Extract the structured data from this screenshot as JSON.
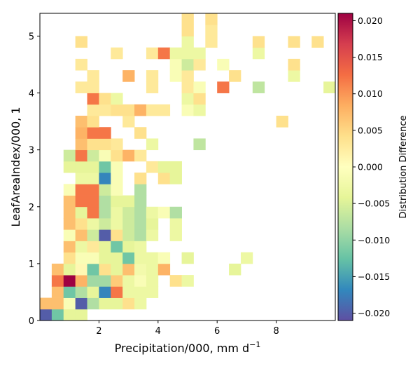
{
  "chart_data": {
    "type": "heatmap",
    "title": "",
    "xlabel": "Precipitation/000,  mm d",
    "xlabel_superscript": "−1",
    "ylabel": "LeafAreaIndex/000,  1",
    "colorbar_label": "Distribution Difference",
    "x_range": [
      0,
      10
    ],
    "y_range": [
      0,
      5.4
    ],
    "bin_width_x": 0.4,
    "bin_height_y": 0.2,
    "x_ticks": [
      2,
      4,
      6,
      8
    ],
    "x_tick_labels": [
      "2",
      "4",
      "6",
      "8"
    ],
    "y_ticks": [
      0,
      1,
      2,
      3,
      4,
      5
    ],
    "y_tick_labels": [
      "0",
      "1",
      "2",
      "3",
      "4",
      "5"
    ],
    "color_range": [
      -0.021,
      0.021
    ],
    "colorbar_ticks": [
      0.02,
      0.015,
      0.01,
      0.005,
      0.0,
      -0.005,
      -0.01,
      -0.015,
      -0.02
    ],
    "colorbar_tick_labels": [
      "0.020",
      "0.015",
      "0.010",
      "0.005",
      "0.000",
      "−0.005",
      "−0.010",
      "−0.015",
      "−0.020"
    ],
    "colormap": "Spectral_r",
    "grid": false,
    "cells": [
      [
        0.0,
        0.0,
        -0.02
      ],
      [
        0.4,
        0.0,
        -0.012
      ],
      [
        0.8,
        0.0,
        -0.004
      ],
      [
        1.2,
        0.0,
        -0.004
      ],
      [
        0.0,
        0.2,
        0.007
      ],
      [
        0.4,
        0.2,
        0.007
      ],
      [
        0.8,
        0.2,
        -0.001
      ],
      [
        1.2,
        0.2,
        -0.02
      ],
      [
        1.6,
        0.2,
        -0.008
      ],
      [
        2.0,
        0.2,
        -0.004
      ],
      [
        2.4,
        0.2,
        -0.004
      ],
      [
        2.8,
        0.2,
        0.004
      ],
      [
        3.2,
        0.2,
        -0.003
      ],
      [
        0.4,
        0.4,
        0.007
      ],
      [
        0.8,
        0.4,
        -0.012
      ],
      [
        1.2,
        0.4,
        -0.008
      ],
      [
        1.6,
        0.4,
        -0.004
      ],
      [
        2.0,
        0.4,
        -0.017
      ],
      [
        2.4,
        0.4,
        0.012
      ],
      [
        2.8,
        0.4,
        -0.003
      ],
      [
        3.2,
        0.4,
        -0.003
      ],
      [
        3.6,
        0.4,
        -0.003
      ],
      [
        0.4,
        0.6,
        0.012
      ],
      [
        0.8,
        0.6,
        0.021
      ],
      [
        1.2,
        0.6,
        0.008
      ],
      [
        1.6,
        0.6,
        -0.009
      ],
      [
        2.0,
        0.6,
        -0.009
      ],
      [
        2.4,
        0.6,
        0.006
      ],
      [
        2.8,
        0.6,
        -0.003
      ],
      [
        3.2,
        0.6,
        -0.001
      ],
      [
        3.6,
        0.6,
        -0.003
      ],
      [
        4.4,
        0.6,
        0.004
      ],
      [
        4.8,
        0.6,
        -0.003
      ],
      [
        0.4,
        0.8,
        0.007
      ],
      [
        0.8,
        0.8,
        -0.004
      ],
      [
        1.2,
        0.8,
        0.001
      ],
      [
        1.6,
        0.8,
        -0.012
      ],
      [
        2.0,
        0.8,
        0.004
      ],
      [
        2.4,
        0.8,
        -0.004
      ],
      [
        2.8,
        0.8,
        0.007
      ],
      [
        3.2,
        0.8,
        -0.002
      ],
      [
        3.6,
        0.8,
        -0.003
      ],
      [
        4.0,
        0.8,
        0.008
      ],
      [
        6.4,
        0.8,
        -0.004
      ],
      [
        0.8,
        1.0,
        0.004
      ],
      [
        1.2,
        1.0,
        -0.001
      ],
      [
        1.6,
        1.0,
        -0.001
      ],
      [
        2.0,
        1.0,
        -0.004
      ],
      [
        2.4,
        1.0,
        -0.004
      ],
      [
        2.8,
        1.0,
        -0.012
      ],
      [
        3.2,
        1.0,
        -0.003
      ],
      [
        3.6,
        1.0,
        -0.003
      ],
      [
        4.0,
        1.0,
        -0.001
      ],
      [
        4.8,
        1.0,
        -0.004
      ],
      [
        6.8,
        1.0,
        -0.003
      ],
      [
        0.8,
        1.2,
        0.007
      ],
      [
        1.2,
        1.2,
        -0.003
      ],
      [
        1.6,
        1.2,
        0.003
      ],
      [
        2.0,
        1.2,
        -0.004
      ],
      [
        2.4,
        1.2,
        -0.012
      ],
      [
        2.8,
        1.2,
        -0.004
      ],
      [
        3.2,
        1.2,
        -0.003
      ],
      [
        0.8,
        1.4,
        -0.001
      ],
      [
        1.2,
        1.4,
        0.007
      ],
      [
        1.6,
        1.4,
        -0.006
      ],
      [
        2.0,
        1.4,
        -0.02
      ],
      [
        2.4,
        1.4,
        0.004
      ],
      [
        2.8,
        1.4,
        -0.006
      ],
      [
        3.2,
        1.4,
        -0.008
      ],
      [
        3.6,
        1.4,
        -0.003
      ],
      [
        4.4,
        1.4,
        -0.003
      ],
      [
        0.8,
        1.6,
        0.007
      ],
      [
        1.2,
        1.6,
        0.004
      ],
      [
        1.6,
        1.6,
        -0.003
      ],
      [
        2.0,
        1.6,
        -0.006
      ],
      [
        2.4,
        1.6,
        -0.003
      ],
      [
        2.8,
        1.6,
        -0.006
      ],
      [
        3.2,
        1.6,
        -0.008
      ],
      [
        3.6,
        1.6,
        -0.004
      ],
      [
        4.4,
        1.6,
        -0.003
      ],
      [
        0.8,
        1.8,
        0.007
      ],
      [
        1.2,
        1.8,
        -0.004
      ],
      [
        1.6,
        1.8,
        0.012
      ],
      [
        2.0,
        1.8,
        -0.008
      ],
      [
        2.4,
        1.8,
        -0.003
      ],
      [
        2.8,
        1.8,
        -0.006
      ],
      [
        3.2,
        1.8,
        -0.008
      ],
      [
        3.6,
        1.8,
        -0.003
      ],
      [
        4.0,
        1.8,
        -0.001
      ],
      [
        4.4,
        1.8,
        -0.008
      ],
      [
        0.8,
        2.0,
        0.007
      ],
      [
        1.2,
        2.0,
        0.012
      ],
      [
        1.6,
        2.0,
        0.012
      ],
      [
        2.0,
        2.0,
        -0.008
      ],
      [
        2.4,
        2.0,
        -0.004
      ],
      [
        2.8,
        2.0,
        -0.004
      ],
      [
        3.2,
        2.0,
        -0.008
      ],
      [
        0.8,
        2.2,
        -0.001
      ],
      [
        1.2,
        2.2,
        0.012
      ],
      [
        1.6,
        2.2,
        0.012
      ],
      [
        2.0,
        2.2,
        -0.006
      ],
      [
        2.4,
        2.2,
        -0.001
      ],
      [
        3.2,
        2.2,
        -0.008
      ],
      [
        1.2,
        2.4,
        -0.003
      ],
      [
        1.6,
        2.4,
        -0.003
      ],
      [
        2.0,
        2.4,
        -0.017
      ],
      [
        2.4,
        2.4,
        -0.001
      ],
      [
        3.2,
        2.4,
        0.004
      ],
      [
        4.0,
        2.4,
        0.004
      ],
      [
        4.4,
        2.4,
        -0.004
      ],
      [
        0.8,
        2.6,
        -0.004
      ],
      [
        1.2,
        2.6,
        -0.004
      ],
      [
        1.6,
        2.6,
        -0.004
      ],
      [
        2.0,
        2.6,
        -0.012
      ],
      [
        2.4,
        2.6,
        -0.001
      ],
      [
        3.6,
        2.6,
        0.003
      ],
      [
        4.0,
        2.6,
        -0.004
      ],
      [
        4.4,
        2.6,
        -0.004
      ],
      [
        0.8,
        2.8,
        -0.006
      ],
      [
        1.2,
        2.8,
        0.012
      ],
      [
        1.6,
        2.8,
        -0.006
      ],
      [
        2.0,
        2.8,
        -0.001
      ],
      [
        2.4,
        2.8,
        0.004
      ],
      [
        2.8,
        2.8,
        0.008
      ],
      [
        3.2,
        2.8,
        0.003
      ],
      [
        1.2,
        3.0,
        0.007
      ],
      [
        1.6,
        3.0,
        0.004
      ],
      [
        2.0,
        3.0,
        0.004
      ],
      [
        2.4,
        3.0,
        0.003
      ],
      [
        3.6,
        3.0,
        -0.003
      ],
      [
        5.2,
        3.0,
        -0.007
      ],
      [
        1.2,
        3.2,
        0.008
      ],
      [
        1.6,
        3.2,
        0.012
      ],
      [
        2.0,
        3.2,
        0.012
      ],
      [
        3.2,
        3.2,
        0.004
      ],
      [
        1.2,
        3.4,
        0.007
      ],
      [
        1.6,
        3.4,
        0.004
      ],
      [
        2.8,
        3.4,
        0.003
      ],
      [
        8.0,
        3.4,
        0.004
      ],
      [
        1.6,
        3.6,
        0.003
      ],
      [
        2.0,
        3.6,
        0.003
      ],
      [
        2.4,
        3.6,
        0.004
      ],
      [
        2.8,
        3.6,
        0.004
      ],
      [
        3.2,
        3.6,
        0.008
      ],
      [
        3.6,
        3.6,
        0.003
      ],
      [
        4.0,
        3.6,
        0.003
      ],
      [
        4.8,
        3.6,
        -0.001
      ],
      [
        5.2,
        3.6,
        -0.003
      ],
      [
        1.6,
        3.8,
        0.012
      ],
      [
        2.0,
        3.8,
        0.004
      ],
      [
        2.4,
        3.8,
        -0.003
      ],
      [
        4.8,
        3.8,
        -0.003
      ],
      [
        5.2,
        3.8,
        0.004
      ],
      [
        1.2,
        4.0,
        0.003
      ],
      [
        1.6,
        4.0,
        0.003
      ],
      [
        3.6,
        4.0,
        0.003
      ],
      [
        4.8,
        4.0,
        0.003
      ],
      [
        5.2,
        4.0,
        -0.001
      ],
      [
        6.0,
        4.0,
        0.012
      ],
      [
        7.2,
        4.0,
        -0.007
      ],
      [
        9.6,
        4.0,
        -0.004
      ],
      [
        1.6,
        4.2,
        0.003
      ],
      [
        2.8,
        4.2,
        0.008
      ],
      [
        3.6,
        4.2,
        0.003
      ],
      [
        4.4,
        4.2,
        -0.001
      ],
      [
        4.8,
        4.2,
        0.003
      ],
      [
        6.4,
        4.2,
        0.004
      ],
      [
        8.4,
        4.2,
        -0.003
      ],
      [
        1.2,
        4.4,
        0.003
      ],
      [
        4.4,
        4.4,
        -0.001
      ],
      [
        4.8,
        4.4,
        -0.006
      ],
      [
        5.2,
        4.4,
        0.003
      ],
      [
        6.0,
        4.4,
        -0.001
      ],
      [
        8.4,
        4.4,
        0.004
      ],
      [
        2.4,
        4.6,
        0.003
      ],
      [
        3.6,
        4.6,
        0.003
      ],
      [
        4.0,
        4.6,
        0.012
      ],
      [
        4.4,
        4.6,
        -0.003
      ],
      [
        4.8,
        4.6,
        -0.003
      ],
      [
        5.2,
        4.6,
        -0.003
      ],
      [
        7.2,
        4.6,
        -0.003
      ],
      [
        1.2,
        4.8,
        0.004
      ],
      [
        4.8,
        4.8,
        -0.003
      ],
      [
        5.6,
        4.8,
        0.003
      ],
      [
        7.2,
        4.8,
        0.004
      ],
      [
        8.4,
        4.8,
        0.004
      ],
      [
        9.2,
        4.8,
        0.004
      ],
      [
        4.8,
        5.0,
        0.004
      ],
      [
        5.6,
        5.0,
        0.003
      ],
      [
        4.8,
        5.2,
        0.004
      ],
      [
        5.6,
        5.2,
        0.004
      ]
    ]
  }
}
